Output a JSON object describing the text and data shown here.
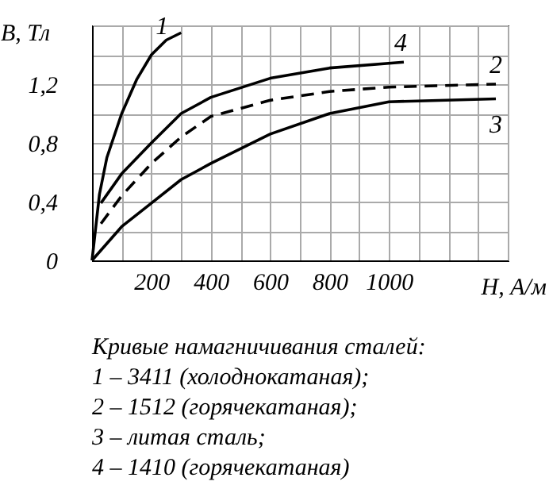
{
  "chart_data": {
    "type": "line",
    "xlabel": "H, А/м",
    "ylabel": "B, Тл",
    "xlim": [
      0,
      1400
    ],
    "ylim": [
      0,
      1.6
    ],
    "xticks": [
      {
        "value": 0,
        "label": null
      },
      {
        "value": 100,
        "label": null
      },
      200,
      {
        "value": 300,
        "label": null
      },
      400,
      {
        "value": 500,
        "label": null
      },
      600,
      {
        "value": 700,
        "label": null
      },
      800,
      {
        "value": 900,
        "label": null
      },
      1000,
      {
        "value": 1100,
        "label": null
      },
      {
        "value": 1200,
        "label": null
      },
      {
        "value": 1300,
        "label": null
      },
      {
        "value": 1400,
        "label": null
      }
    ],
    "yticks": [
      0,
      {
        "value": 0.2,
        "label": null
      },
      {
        "value": 0.4,
        "label": "0,4"
      },
      {
        "value": 0.6,
        "label": null
      },
      {
        "value": 0.8,
        "label": "0,8"
      },
      {
        "value": 1.0,
        "label": null
      },
      {
        "value": 1.2,
        "label": "1,2"
      },
      {
        "value": 1.4,
        "label": null
      },
      {
        "value": 1.6,
        "label": null
      }
    ],
    "grid": true,
    "marker": "none",
    "legend": false,
    "series": [
      {
        "name": "1",
        "color": "#000000",
        "line_style": "solid",
        "x": [
          0,
          25,
          50,
          100,
          150,
          200,
          250,
          300
        ],
        "values": [
          0,
          0.45,
          0.7,
          1.0,
          1.23,
          1.4,
          1.5,
          1.55
        ]
      },
      {
        "name": "2",
        "color": "#000000",
        "line_style": "dashed",
        "x": [
          30,
          100,
          200,
          300,
          400,
          600,
          800,
          1000,
          1360
        ],
        "values": [
          0.25,
          0.44,
          0.66,
          0.84,
          0.98,
          1.09,
          1.15,
          1.18,
          1.2
        ]
      },
      {
        "name": "3",
        "color": "#000000",
        "line_style": "solid",
        "x": [
          0,
          100,
          200,
          300,
          400,
          600,
          800,
          1000,
          1360
        ],
        "values": [
          0,
          0.23,
          0.39,
          0.55,
          0.66,
          0.86,
          1.0,
          1.08,
          1.1
        ]
      },
      {
        "name": "4",
        "color": "#000000",
        "line_style": "solid",
        "x": [
          30,
          100,
          200,
          300,
          400,
          600,
          800,
          1050
        ],
        "values": [
          0.39,
          0.59,
          0.8,
          1.0,
          1.11,
          1.24,
          1.31,
          1.35
        ]
      }
    ],
    "annotations": [
      "Кривые намагничивания сталей:",
      "1 – 3411 (холоднокатаная);",
      "2 – 1512 (горячекатаная);",
      "3 – литая сталь;",
      "4 – 1410 (горячекатаная)"
    ]
  }
}
